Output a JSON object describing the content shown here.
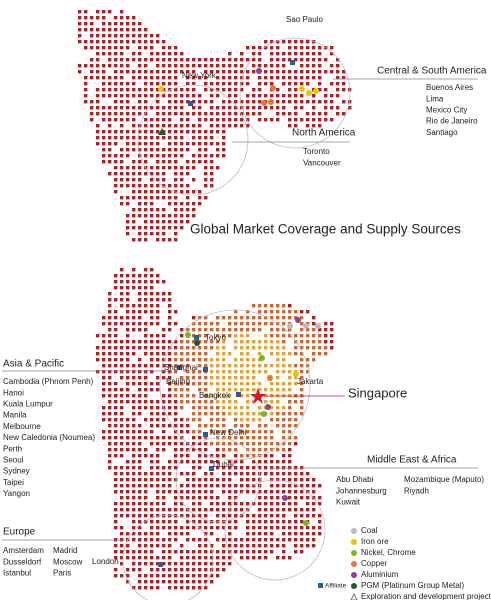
{
  "title": "Global Market Coverage and Supply Sources",
  "regions": [
    {
      "name": "North America",
      "cities": [
        "Toronto",
        "Vancouver"
      ]
    },
    {
      "name": "Central & South America",
      "cities": [
        "Buenos Aires",
        "Lima",
        "Mexico City",
        "Rio de Janeiro",
        "Santiago"
      ]
    },
    {
      "name": "Asia & Pacific",
      "cities": [
        "Cambodia (Phnom Penh)",
        "Hanoi",
        "Kuala Lumpur",
        "Manila",
        "Melbourne",
        "New Caledonia (Noumea)",
        "Perth",
        "Seoul",
        "Sydney",
        "Taipei",
        "Yangon"
      ]
    },
    {
      "name": "Middle East & Africa",
      "cities": [
        "Abu Dhabi",
        "Johannesburg",
        "Kuwait",
        "Mozambique (Maputo)",
        "Riyadh"
      ]
    },
    {
      "name": "Europe",
      "cities": [
        "Amsterdam",
        "Dusseldorf",
        "Istanbul",
        "Madrid",
        "Moscow",
        "Paris"
      ]
    }
  ],
  "hubs": [
    "New York",
    "Sao Paulo",
    "Tokyo",
    "Shanghai",
    "Beijing",
    "Bangkok",
    "New Delhi",
    "Dubai",
    "London",
    "Jakarta"
  ],
  "highlight": "Singapore",
  "legend": {
    "affiliate": "Affiliate",
    "items": [
      "Coal",
      "Iron ore",
      "Nickel, Chrome",
      "Copper",
      "Aluminium",
      "PGM (Platinum Group Metal)",
      "Exploration and development projects"
    ]
  }
}
